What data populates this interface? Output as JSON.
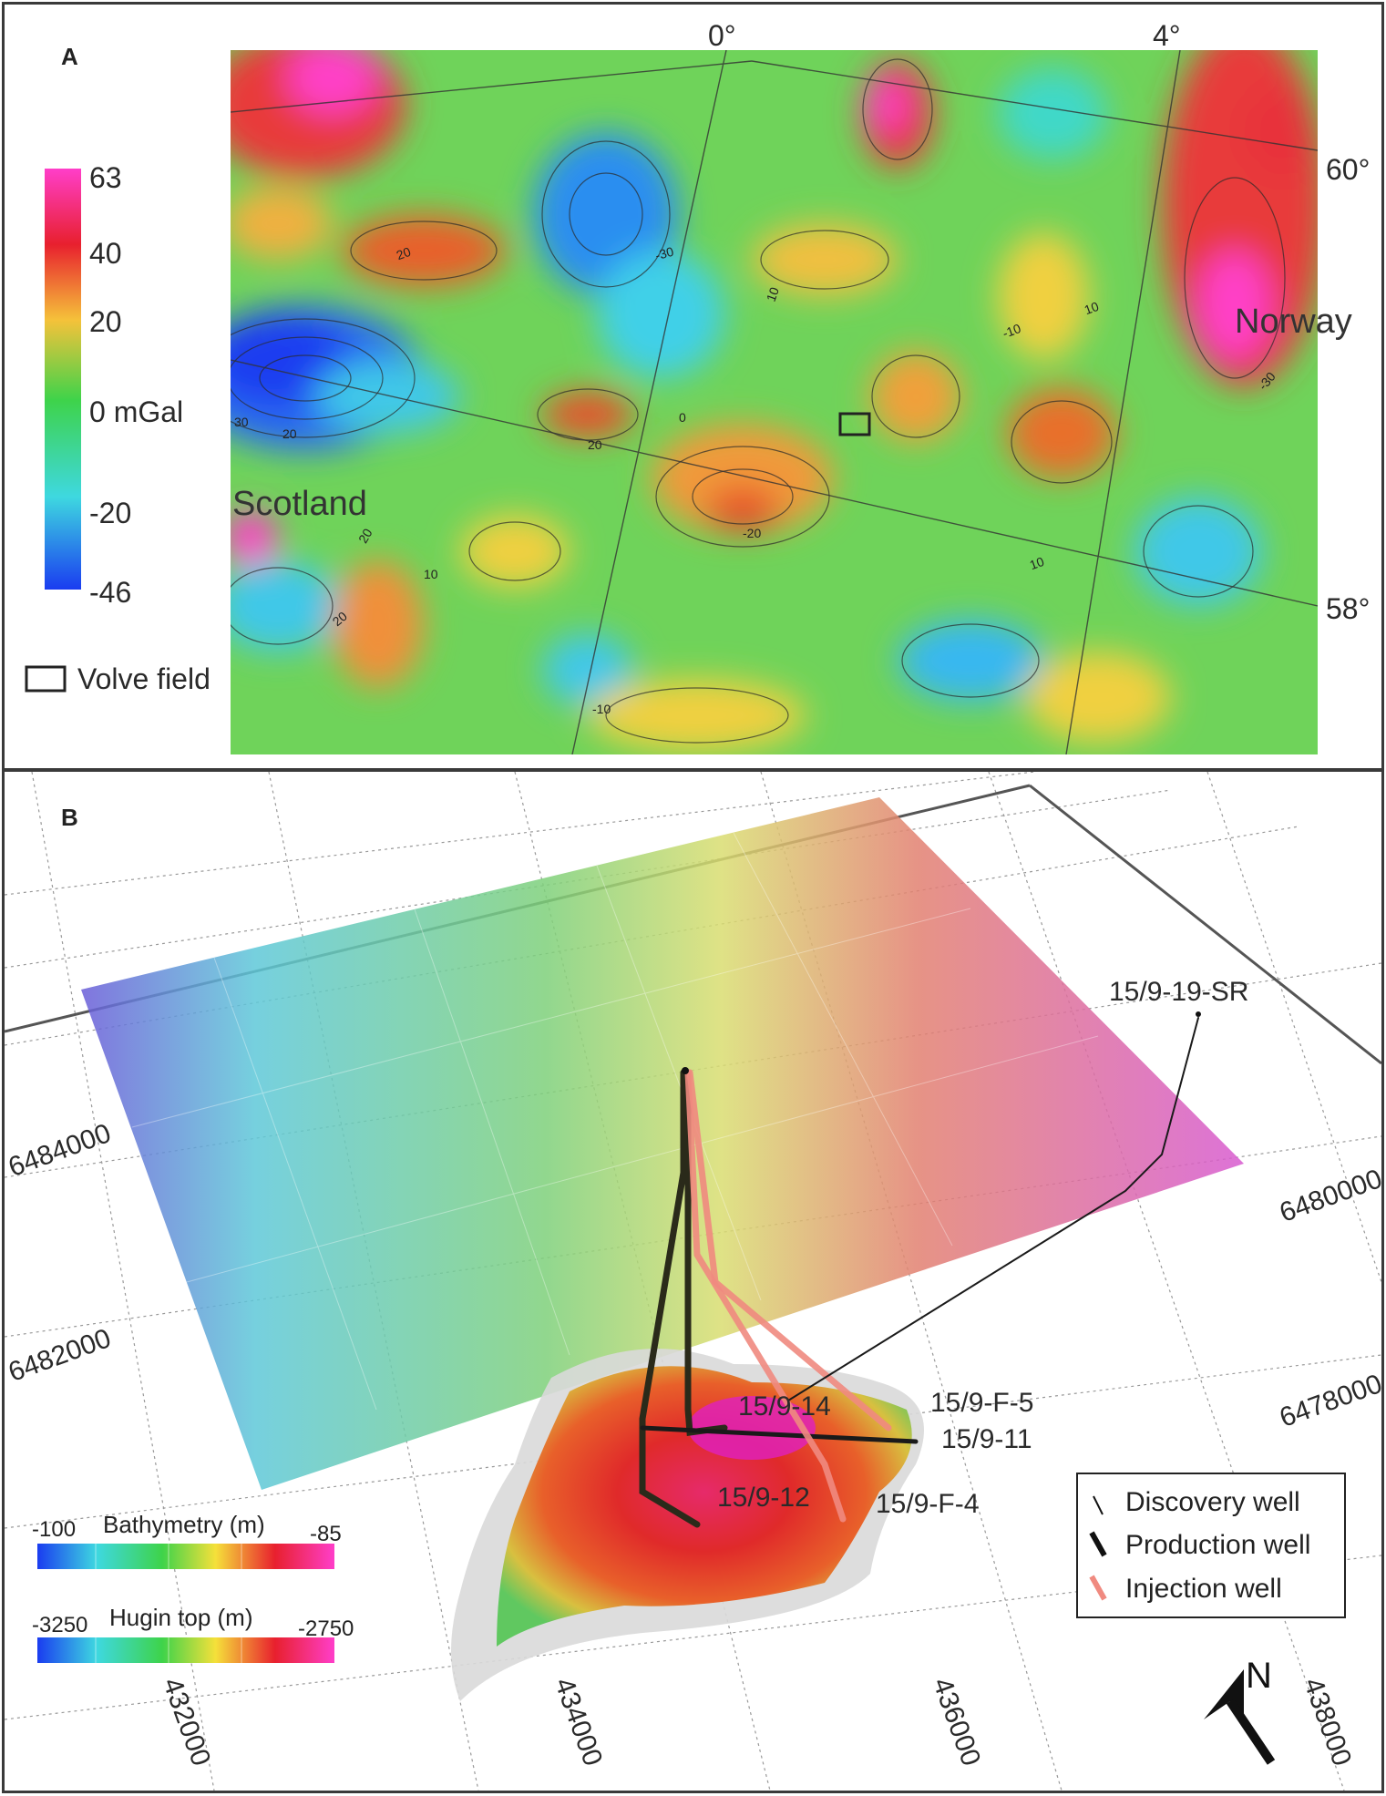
{
  "panel_a": {
    "label": "A",
    "colorbar": {
      "ticks": [
        "63",
        "40",
        "20",
        "0 mGal",
        "-20",
        "-46"
      ],
      "colors": [
        "#ff3ec9",
        "#e8202e",
        "#f5c23a",
        "#3ed34a",
        "#3ed8e0",
        "#1a3cf0"
      ]
    },
    "legend_box_label": "Volve field",
    "lon_labels": [
      "0°",
      "4°"
    ],
    "lat_labels": [
      "60°",
      "58°"
    ],
    "place_labels": [
      "Norway",
      "Scotland"
    ],
    "contour_labels": [
      "-30",
      "-30",
      "-10",
      "10",
      "10",
      "20",
      "20",
      "30",
      "0",
      "10",
      "-20",
      "20",
      "20",
      "-10",
      "10",
      "20"
    ]
  },
  "panel_b": {
    "label": "B",
    "northings_left": [
      "6484000",
      "6482000"
    ],
    "northings_right": [
      "6480000",
      "6478000"
    ],
    "eastings": [
      "432000",
      "434000",
      "436000",
      "438000"
    ],
    "well_labels": [
      "15/9-19-SR",
      "15/9-14",
      "15/9-F-5",
      "15/9-11",
      "15/9-12",
      "15/9-F-4"
    ],
    "bathymetry_scale": {
      "title": "Bathymetry (m)",
      "min": "-100",
      "max": "-85"
    },
    "hugin_scale": {
      "title": "Hugin top (m)",
      "min": "-3250",
      "max": "-2750"
    },
    "well_legend": [
      {
        "symbol": "\\",
        "label": "Discovery well",
        "color": "#111111"
      },
      {
        "symbol": "❚",
        "label": "Production well",
        "color": "#111111"
      },
      {
        "symbol": "❚",
        "label": "Injection well",
        "color": "#f08a80"
      }
    ],
    "north_label": "N"
  }
}
